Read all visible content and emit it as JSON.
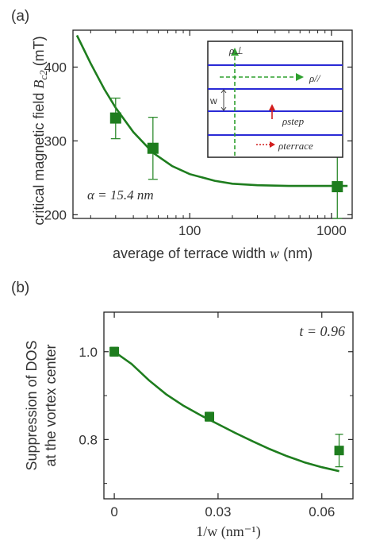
{
  "panel_a_label": "(a)",
  "panel_b_label": "(b)",
  "chart_data": [
    {
      "panel": "(a)",
      "type": "scatter",
      "xscale": "log",
      "xlim": [
        15,
        1400
      ],
      "ylim": [
        195,
        450
      ],
      "xlabel": "average of terrace width w (nm)",
      "ylabel": "critical magnetic field B_c2 (mT)",
      "xticks": [
        100,
        1000
      ],
      "xtick_labels": [
        "100",
        "1000"
      ],
      "yticks": [
        200,
        300,
        400
      ],
      "ytick_labels": [
        "200",
        "300",
        "400"
      ],
      "annotation": "α = 15.4 nm",
      "color": "#1e7d1e",
      "points": [
        {
          "x": 30,
          "y": 331,
          "err_low": 303,
          "err_high": 358
        },
        {
          "x": 55,
          "y": 290,
          "err_low": 248,
          "err_high": 332
        },
        {
          "x": 1100,
          "y": 238,
          "err_low": 195,
          "err_high": 280
        }
      ],
      "fit_curve": {
        "x": [
          16,
          20,
          25,
          30,
          40,
          55,
          75,
          100,
          150,
          200,
          300,
          500,
          800,
          1300
        ],
        "y": [
          443,
          405,
          370,
          345,
          312,
          284,
          266,
          255,
          246,
          242,
          240,
          239,
          239,
          239
        ]
      },
      "inset": {
        "labels": {
          "rho_perp": "ρ⊥",
          "rho_par": "ρ//",
          "w": "w",
          "rho_step": "ρstep",
          "rho_terrace": "ρterrace"
        },
        "colors": {
          "lines": "#2a2ad6",
          "arrows_green": "#2ea02e",
          "arrows_red": "#d21e1e"
        }
      }
    },
    {
      "panel": "(b)",
      "type": "scatter",
      "xlim": [
        -0.003,
        0.069
      ],
      "ylim": [
        0.665,
        1.09
      ],
      "xlabel": "1/w (nm⁻¹)",
      "ylabel": [
        "Suppression of DOS",
        "at the vortex center"
      ],
      "xticks": [
        0,
        0.03,
        0.06
      ],
      "xtick_labels": [
        "0",
        "0.03",
        "0.06"
      ],
      "yticks": [
        0.8,
        1.0
      ],
      "ytick_labels": [
        "0.8",
        "1.0"
      ],
      "annotation": "t = 0.96",
      "color": "#1e7d1e",
      "points": [
        {
          "x": 0,
          "y": 1.0,
          "err_low": 0.99,
          "err_high": 1.01
        },
        {
          "x": 0.0275,
          "y": 0.852,
          "err_low": 0.842,
          "err_high": 0.862
        },
        {
          "x": 0.065,
          "y": 0.775,
          "err_low": 0.738,
          "err_high": 0.812
        }
      ],
      "fit_curve": {
        "x": [
          0,
          0.005,
          0.01,
          0.015,
          0.02,
          0.025,
          0.03,
          0.035,
          0.04,
          0.045,
          0.05,
          0.055,
          0.06,
          0.065
        ],
        "y": [
          1.0,
          0.972,
          0.935,
          0.903,
          0.877,
          0.855,
          0.835,
          0.815,
          0.796,
          0.778,
          0.762,
          0.748,
          0.737,
          0.728
        ]
      }
    }
  ]
}
